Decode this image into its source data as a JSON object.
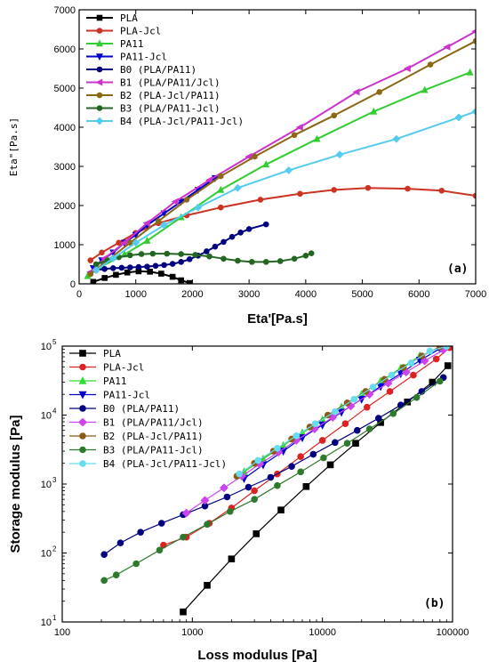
{
  "chart_data": [
    {
      "type": "line",
      "panel": "(a)",
      "xlabel": "Eta'[Pa.s]",
      "ylabel": "Eta\"[Pa.s]",
      "xlim": [
        0,
        7000
      ],
      "ylim": [
        0,
        7000
      ],
      "xticks": [
        0,
        1000,
        2000,
        3000,
        4000,
        5000,
        6000,
        7000
      ],
      "yticks": [
        0,
        1000,
        2000,
        3000,
        4000,
        5000,
        6000,
        7000
      ],
      "legend_position": "top-left",
      "series": [
        {
          "name": "PLA",
          "color": "#000000",
          "marker": "square",
          "x": [
            250,
            450,
            650,
            850,
            1050,
            1250,
            1450,
            1650,
            1800,
            1950
          ],
          "y": [
            50,
            150,
            230,
            290,
            320,
            310,
            260,
            180,
            90,
            20
          ]
        },
        {
          "name": "PLA-Jcl",
          "color": "#cc3322",
          "marker": "circle",
          "x": [
            200,
            400,
            700,
            1000,
            1400,
            1900,
            2500,
            3200,
            3900,
            4500,
            5100,
            5800,
            6400,
            7000
          ],
          "y": [
            600,
            800,
            1050,
            1300,
            1550,
            1750,
            1950,
            2150,
            2300,
            2400,
            2450,
            2430,
            2380,
            2250
          ]
        },
        {
          "name": "PA11",
          "color": "#33cc33",
          "marker": "triangle-up",
          "x": [
            150,
            400,
            800,
            1200,
            1800,
            2500,
            3300,
            4200,
            5200,
            6100,
            6900
          ],
          "y": [
            200,
            450,
            750,
            1100,
            1700,
            2400,
            3050,
            3700,
            4400,
            4950,
            5400
          ]
        },
        {
          "name": "PA11-Jcl",
          "color": "#0000cc",
          "marker": "triangle-down",
          "x": [
            250,
            400,
            600,
            800,
            1000,
            1200,
            1500,
            1800,
            2100,
            2400
          ],
          "y": [
            400,
            600,
            800,
            1050,
            1250,
            1500,
            1800,
            2100,
            2400,
            2700
          ]
        },
        {
          "name": "B0 (PLA/PA11)",
          "color": "#000080",
          "marker": "circle",
          "x": [
            300,
            450,
            600,
            750,
            900,
            1050,
            1200,
            1350,
            1500,
            1650,
            1800,
            1950,
            2100,
            2250,
            2400,
            2550,
            2700,
            2850,
            3000,
            3300
          ],
          "y": [
            350,
            380,
            400,
            410,
            420,
            430,
            440,
            460,
            480,
            510,
            560,
            630,
            720,
            830,
            950,
            1070,
            1200,
            1310,
            1400,
            1520
          ]
        },
        {
          "name": "B1 (PLA/PA11/Jcl)",
          "color": "#cc33cc",
          "marker": "triangle-left",
          "x": [
            200,
            450,
            800,
            1200,
            1700,
            2300,
            3000,
            3900,
            4900,
            5800,
            6500,
            7000
          ],
          "y": [
            300,
            650,
            1050,
            1550,
            2100,
            2650,
            3250,
            4000,
            4900,
            5500,
            6050,
            6450
          ]
        },
        {
          "name": "B2 (PLA-Jcl/PA11)",
          "color": "#8b6914",
          "marker": "circle",
          "x": [
            200,
            500,
            900,
            1400,
            1900,
            2500,
            3100,
            3800,
            4500,
            5300,
            6200,
            7000
          ],
          "y": [
            250,
            600,
            1050,
            1600,
            2150,
            2750,
            3250,
            3800,
            4300,
            4900,
            5600,
            6200
          ]
        },
        {
          "name": "B3 (PLA/PA11-Jcl)",
          "color": "#226622",
          "marker": "circle",
          "x": [
            300,
            500,
            700,
            900,
            1100,
            1300,
            1550,
            1800,
            2050,
            2300,
            2550,
            2800,
            3050,
            3300,
            3550,
            3800,
            4000,
            4100
          ],
          "y": [
            500,
            600,
            680,
            730,
            760,
            770,
            770,
            760,
            740,
            700,
            640,
            590,
            560,
            560,
            580,
            640,
            720,
            780
          ]
        },
        {
          "name": "B4 (PLA-Jcl/PA11-Jcl)",
          "color": "#55ccee",
          "marker": "diamond",
          "x": [
            300,
            600,
            1000,
            1500,
            2100,
            2800,
            3700,
            4600,
            5600,
            6700,
            7000
          ],
          "y": [
            350,
            650,
            1050,
            1500,
            1950,
            2450,
            2900,
            3300,
            3700,
            4250,
            4400
          ]
        }
      ]
    },
    {
      "type": "line",
      "panel": "(b)",
      "xlabel": "Loss modulus [Pa]",
      "ylabel": "Storage modulus [Pa]",
      "xscale": "log",
      "yscale": "log",
      "xlim": [
        100,
        100000
      ],
      "ylim": [
        10,
        100000
      ],
      "xticks": [
        100,
        1000,
        10000,
        100000
      ],
      "xticklabels": [
        "100",
        "1000",
        "10000",
        "100000"
      ],
      "yticks": [
        10,
        100,
        1000,
        10000,
        100000
      ],
      "yticklabels": [
        "10",
        "10",
        "10",
        "10",
        "10"
      ],
      "ytick_exponents": [
        "1",
        "2",
        "3",
        "4",
        "5"
      ],
      "legend_position": "top-left",
      "series": [
        {
          "name": "PLA",
          "color": "#000000",
          "marker": "square",
          "x": [
            850,
            1300,
            2000,
            3100,
            4800,
            7500,
            11500,
            18000,
            28000,
            45000,
            70000,
            92000
          ],
          "y": [
            14,
            34,
            82,
            190,
            420,
            920,
            1900,
            3900,
            7800,
            15500,
            30000,
            52000
          ]
        },
        {
          "name": "PLA-Jcl",
          "color": "#dd2222",
          "marker": "circle",
          "x": [
            600,
            900,
            1350,
            2000,
            3000,
            4500,
            6800,
            10000,
            15000,
            22000,
            33000,
            50000,
            75000,
            95000
          ],
          "y": [
            130,
            170,
            270,
            450,
            800,
            1400,
            2500,
            4300,
            7500,
            13000,
            22000,
            38000,
            65000,
            95000
          ]
        },
        {
          "name": "PA11",
          "color": "#33dd33",
          "marker": "triangle-up",
          "x": [
            2500,
            3500,
            5000,
            7000,
            10000,
            14000,
            20000,
            28000,
            40000,
            56000,
            80000
          ],
          "y": [
            1500,
            2300,
            3600,
            5500,
            8500,
            13000,
            20000,
            31000,
            48000,
            72000,
            95000
          ]
        },
        {
          "name": "PA11-Jcl",
          "color": "#0000cc",
          "marker": "triangle-down",
          "x": [
            2500,
            3500,
            5000,
            7000,
            10000,
            14000,
            20000,
            28000,
            40000,
            56000,
            80000
          ],
          "y": [
            1200,
            1900,
            3000,
            4700,
            7200,
            11000,
            17000,
            26000,
            40000,
            62000,
            92000
          ]
        },
        {
          "name": "B0 (PLA/PA11)",
          "color": "#000080",
          "marker": "circle",
          "x": [
            210,
            280,
            400,
            580,
            850,
            1250,
            1850,
            2700,
            4000,
            5800,
            8500,
            12500,
            18500,
            27000,
            40000,
            58000,
            85000
          ],
          "y": [
            95,
            140,
            200,
            270,
            360,
            480,
            650,
            900,
            1250,
            1800,
            2700,
            4000,
            6000,
            9000,
            14000,
            22000,
            35000
          ]
        },
        {
          "name": "B1 (PLA/PA11/Jcl)",
          "color": "#cc44ee",
          "marker": "diamond",
          "x": [
            900,
            1250,
            1750,
            2400,
            3300,
            4600,
            6300,
            8700,
            12000,
            16500,
            23000,
            32000,
            44000,
            61000,
            85000
          ],
          "y": [
            380,
            580,
            880,
            1300,
            1950,
            2900,
            4300,
            6300,
            9300,
            13500,
            20000,
            29000,
            42000,
            61000,
            88000
          ]
        },
        {
          "name": "B2 (PLA-Jcl/PA11)",
          "color": "#8b5a14",
          "marker": "circle",
          "x": [
            2200,
            3000,
            4200,
            5800,
            8000,
            11000,
            15500,
            21500,
            30000,
            42000,
            58000,
            80000
          ],
          "y": [
            1300,
            2000,
            3000,
            4500,
            6700,
            10000,
            15000,
            22000,
            33000,
            49000,
            72000,
            98000
          ]
        },
        {
          "name": "B3 (PLA/PA11-Jcl)",
          "color": "#2d7a2d",
          "marker": "circle",
          "x": [
            210,
            260,
            370,
            560,
            850,
            1300,
            1950,
            3000,
            4500,
            6800,
            10200,
            15500,
            23000,
            35000,
            53000,
            80000
          ],
          "y": [
            40,
            48,
            70,
            110,
            170,
            260,
            400,
            600,
            950,
            1500,
            2400,
            3900,
            6300,
            10500,
            18000,
            31000
          ]
        },
        {
          "name": "B4 (PLA-Jcl/PA11-Jcl)",
          "color": "#66ddee",
          "marker": "circle",
          "x": [
            2300,
            3200,
            4500,
            6300,
            8800,
            12500,
            17500,
            24500,
            34000,
            48000,
            67000,
            90000
          ],
          "y": [
            1400,
            2200,
            3300,
            5000,
            7500,
            11200,
            17000,
            25500,
            38000,
            57000,
            85000,
            99000
          ]
        }
      ]
    }
  ]
}
